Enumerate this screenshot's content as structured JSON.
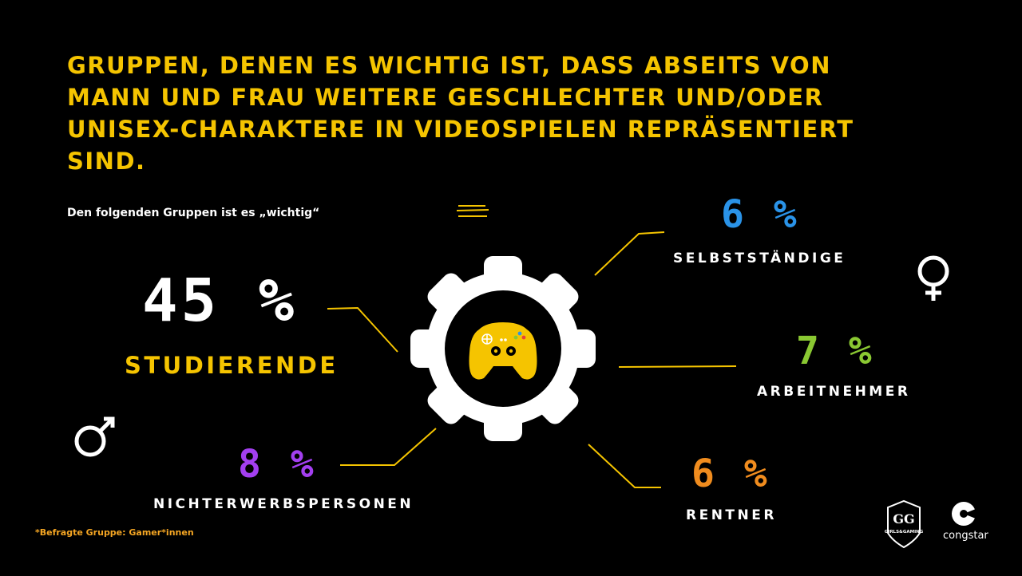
{
  "title": "GRUPPEN, DENEN ES WICHTIG IST, DASS ABSEITS VON MANN UND FRAU WEITERE GESCHLECHTER UND/ODER UNISEX-CHARAKTERE IN VIDEOSPIELEN REPRÄSENTIERT SIND.",
  "subtitle": "Den folgenden Gruppen ist es „wichtig“",
  "footnote": "*Befragte Gruppe: Gamer*innen",
  "icons": [
    "gear-icon",
    "gamepad-icon",
    "female-symbol-icon",
    "male-symbol-icon"
  ],
  "logos": {
    "girlsgaming": "GIRLS&GAMING",
    "congstar": "congstar"
  },
  "chart_data": {
    "type": "bar",
    "title": "GRUPPEN, DENEN ES WICHTIG IST, DASS ABSEITS VON MANN UND FRAU WEITERE GESCHLECHTER UND/ODER UNISEX-CHARAKTERE IN VIDEOSPIELEN REPRÄSENTIERT SIND.",
    "categories": [
      "STUDIERENDE",
      "NICHTERWERBSPERSONEN",
      "SELBSTSTÄNDIGE",
      "ARBEITNEHMER",
      "RENTNER"
    ],
    "values": [
      45,
      8,
      6,
      7,
      6
    ],
    "labels": [
      "45 %",
      "8 %",
      "6 %",
      "7 %",
      "6 %"
    ],
    "colors": [
      "#ffffff",
      "#a33ff0",
      "#2a93e8",
      "#8ac832",
      "#f08c1e"
    ],
    "label_colors": [
      "#f5c400",
      "#ffffff",
      "#ffffff",
      "#ffffff",
      "#ffffff"
    ]
  }
}
